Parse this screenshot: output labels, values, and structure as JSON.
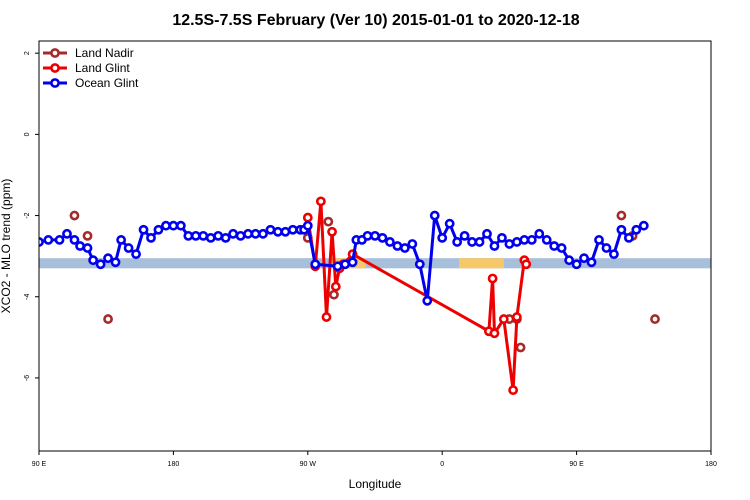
{
  "chart_data": {
    "type": "line",
    "title": "12.5S-7.5S February (Ver 10)   2015-01-01 to 2020-12-18",
    "xlabel": "Longitude",
    "ylabel": "XCO2 - MLO trend (ppm)",
    "xlim": [
      90,
      450
    ],
    "ylim": [
      -7.8,
      2.3
    ],
    "x_ticks": [
      {
        "value": 90,
        "label": "90 E"
      },
      {
        "value": 162,
        "label": "180"
      },
      {
        "value": 234,
        "label": "90 W"
      },
      {
        "value": 306,
        "label": "0"
      },
      {
        "value": 378,
        "label": "90 E"
      },
      {
        "value": 450,
        "label": "180"
      }
    ],
    "y_ticks": [
      {
        "value": 2,
        "label": "2"
      },
      {
        "value": 0,
        "label": "0"
      },
      {
        "value": -2,
        "label": "-2"
      },
      {
        "value": -4,
        "label": "-4"
      },
      {
        "value": -6,
        "label": "-6"
      }
    ],
    "band": {
      "y_low": -3.3,
      "y_high": -3.05,
      "color": "#a7bfdb"
    },
    "highlight": {
      "color": "#f5c96a",
      "spans": [
        [
          247,
          265
        ],
        [
          315,
          339
        ]
      ]
    },
    "legend": {
      "position": "top-left"
    },
    "series": [
      {
        "name": "Land Nadir",
        "color": "#a52a2a",
        "connected": false,
        "points": [
          [
            109,
            -2.0
          ],
          [
            116,
            -2.5
          ],
          [
            127,
            -4.55
          ],
          [
            234,
            -2.55
          ],
          [
            245,
            -2.15
          ],
          [
            248,
            -3.95
          ],
          [
            342,
            -4.55
          ],
          [
            346,
            -4.55
          ],
          [
            348,
            -5.25
          ],
          [
            402,
            -2.0
          ],
          [
            408,
            -2.5
          ],
          [
            420,
            -4.55
          ]
        ]
      },
      {
        "name": "Land Glint",
        "color": "#ee0000",
        "connected": true,
        "points": [
          [
            234,
            -2.05
          ],
          [
            238,
            -3.25
          ],
          [
            241,
            -1.65
          ],
          [
            244,
            -4.5
          ],
          [
            247,
            -2.4
          ],
          [
            249,
            -3.75
          ],
          [
            251,
            -3.3
          ],
          [
            253,
            -3.2
          ],
          [
            258,
            -2.95
          ],
          [
            331,
            -4.85
          ],
          [
            333,
            -3.55
          ],
          [
            334,
            -4.9
          ],
          [
            339,
            -4.55
          ],
          [
            344,
            -6.3
          ],
          [
            346,
            -4.5
          ],
          [
            350,
            -3.1
          ],
          [
            351,
            -3.2
          ]
        ]
      },
      {
        "name": "Ocean Glint",
        "color": "#0000ee",
        "connected": true,
        "points": [
          [
            90,
            -2.65
          ],
          [
            95,
            -2.6
          ],
          [
            101,
            -2.6
          ],
          [
            105,
            -2.45
          ],
          [
            109,
            -2.6
          ],
          [
            112,
            -2.75
          ],
          [
            116,
            -2.8
          ],
          [
            119,
            -3.1
          ],
          [
            123,
            -3.2
          ],
          [
            127,
            -3.05
          ],
          [
            131,
            -3.15
          ],
          [
            134,
            -2.6
          ],
          [
            138,
            -2.8
          ],
          [
            142,
            -2.95
          ],
          [
            146,
            -2.35
          ],
          [
            150,
            -2.55
          ],
          [
            154,
            -2.35
          ],
          [
            158,
            -2.25
          ],
          [
            162,
            -2.25
          ],
          [
            166,
            -2.25
          ],
          [
            170,
            -2.5
          ],
          [
            174,
            -2.5
          ],
          [
            178,
            -2.5
          ],
          [
            182,
            -2.55
          ],
          [
            186,
            -2.5
          ],
          [
            190,
            -2.55
          ],
          [
            194,
            -2.45
          ],
          [
            198,
            -2.5
          ],
          [
            202,
            -2.45
          ],
          [
            206,
            -2.45
          ],
          [
            210,
            -2.45
          ],
          [
            214,
            -2.35
          ],
          [
            218,
            -2.4
          ],
          [
            222,
            -2.4
          ],
          [
            226,
            -2.35
          ],
          [
            230,
            -2.35
          ],
          [
            232,
            -2.35
          ],
          [
            234,
            -2.25
          ],
          [
            238,
            -3.2
          ],
          [
            250,
            -3.25
          ],
          [
            254,
            -3.2
          ],
          [
            258,
            -3.15
          ],
          [
            260,
            -2.6
          ],
          [
            263,
            -2.6
          ],
          [
            266,
            -2.5
          ],
          [
            270,
            -2.5
          ],
          [
            274,
            -2.55
          ],
          [
            278,
            -2.65
          ],
          [
            282,
            -2.75
          ],
          [
            286,
            -2.8
          ],
          [
            290,
            -2.7
          ],
          [
            294,
            -3.2
          ],
          [
            298,
            -4.1
          ],
          [
            302,
            -2.0
          ],
          [
            306,
            -2.55
          ],
          [
            310,
            -2.2
          ],
          [
            314,
            -2.65
          ],
          [
            318,
            -2.5
          ],
          [
            322,
            -2.65
          ],
          [
            326,
            -2.65
          ],
          [
            330,
            -2.45
          ],
          [
            334,
            -2.75
          ],
          [
            338,
            -2.55
          ],
          [
            342,
            -2.7
          ],
          [
            346,
            -2.65
          ],
          [
            350,
            -2.6
          ],
          [
            354,
            -2.6
          ],
          [
            358,
            -2.45
          ],
          [
            362,
            -2.6
          ],
          [
            366,
            -2.75
          ],
          [
            370,
            -2.8
          ],
          [
            374,
            -3.1
          ],
          [
            378,
            -3.2
          ],
          [
            382,
            -3.05
          ],
          [
            386,
            -3.15
          ],
          [
            390,
            -2.6
          ],
          [
            394,
            -2.8
          ],
          [
            398,
            -2.95
          ],
          [
            402,
            -2.35
          ],
          [
            406,
            -2.55
          ],
          [
            410,
            -2.35
          ],
          [
            414,
            -2.25
          ]
        ]
      }
    ]
  }
}
